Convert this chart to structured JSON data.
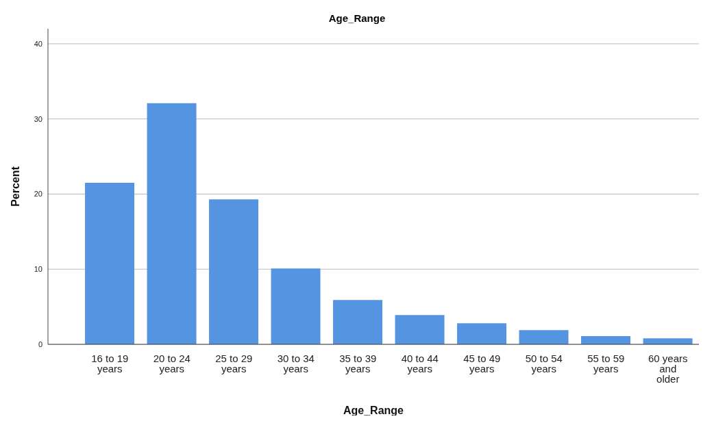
{
  "chart_data": {
    "type": "bar",
    "title": "Age_Range",
    "xlabel": "Age_Range",
    "ylabel": "Percent",
    "categories": [
      "16 to 19 years",
      "20 to 24 years",
      "25 to 29 years",
      "30 to 34 years",
      "35 to 39 years",
      "40 to 44 years",
      "45 to 49 years",
      "50 to 54 years",
      "55 to 59 years",
      "60 years and older"
    ],
    "values": [
      21.5,
      32.1,
      19.3,
      10.1,
      5.9,
      3.9,
      2.8,
      1.9,
      1.1,
      0.8
    ],
    "color": "#5594e1",
    "ylim": [
      0,
      42
    ],
    "yticks": [
      0,
      10,
      20,
      30,
      40
    ],
    "grid": "y"
  }
}
